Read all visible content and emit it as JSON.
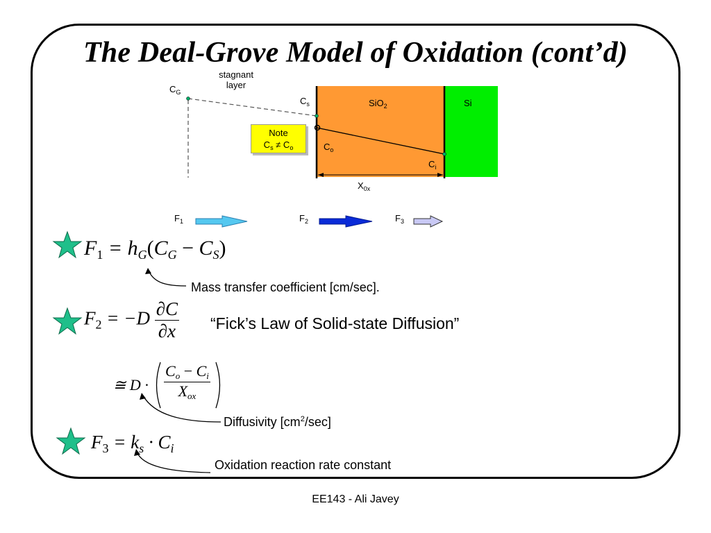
{
  "slide": {
    "title": "The Deal-Grove Model of Oxidation (cont’d)",
    "footer": "EE143 - Ali Javey"
  },
  "diagram": {
    "stagnant_label_1": "stagnant",
    "stagnant_label_2": "layer",
    "cg_main": "C",
    "cg_sub": "G",
    "cs_main": "C",
    "cs_sub": "s",
    "co_main": "C",
    "co_sub": "o",
    "ci_main": "C",
    "ci_sub": "i",
    "sio2_main": "SiO",
    "sio2_sub": "2",
    "si_label": "Si",
    "xox_main": "X",
    "xox_sub": "0x",
    "note_title": "Note",
    "note_text_main": "C",
    "note_text_sub1": "s",
    "note_text_mid": " ≠ C",
    "note_text_sub2": "o",
    "colors": {
      "sio2": "#ff9933",
      "si": "#00ee00",
      "note": "#ffff00"
    }
  },
  "fluxes": [
    {
      "main": "F",
      "sub": "1",
      "arrow_color": "#55c8f0"
    },
    {
      "main": "F",
      "sub": "2",
      "arrow_color": "#0a2bd8"
    },
    {
      "main": "F",
      "sub": "3",
      "arrow_color": "#c9c9f5"
    }
  ],
  "equations": {
    "f1": {
      "lhs": "F",
      "lhs_sub": "1",
      "rhs_text": "= h",
      "h_sub": "G",
      "open": "(",
      "c1": "C",
      "c1_sub": "G",
      "minus": " − ",
      "c2": "C",
      "c2_sub": "S",
      "close": ")"
    },
    "f2": {
      "lhs": "F",
      "lhs_sub": "2",
      "rhs": "= −D",
      "num": "∂C",
      "den": "∂x"
    },
    "f2_approx": {
      "prefix": "≅ D ·",
      "num_a": "C",
      "num_a_sub": "o",
      "num_minus": " − ",
      "num_b": "C",
      "num_b_sub": "i",
      "den": "X",
      "den_sub": "ox"
    },
    "f3": {
      "lhs": "F",
      "lhs_sub": "3",
      "rhs": "= k",
      "k_sub": "s",
      "dot": " · C",
      "c_sub": "i"
    }
  },
  "annotations": {
    "mass_transfer": "Mass transfer coefficient [cm/sec].",
    "ficks_law": "“Fick’s Law of Solid-state Diffusion”",
    "diffusivity_a": "Diffusivity [cm",
    "diffusivity_sup": "2",
    "diffusivity_b": "/sec]",
    "reaction_rate": "Oxidation reaction rate constant"
  },
  "star_color": "#1fbf8a"
}
